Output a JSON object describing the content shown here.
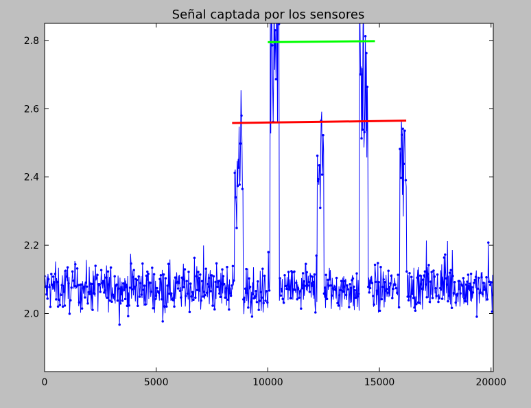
{
  "chart_data": {
    "type": "line",
    "title": "Señal captada por los sensores",
    "xlabel": "",
    "ylabel": "",
    "xlim": [
      0,
      20100
    ],
    "ylim": [
      1.83,
      2.85
    ],
    "xticks": [
      0,
      5000,
      10000,
      15000,
      20000
    ],
    "yticks": [
      2.0,
      2.2,
      2.4,
      2.6,
      2.8
    ],
    "xtick_labels": [
      "0",
      "5000",
      "10000",
      "15000",
      "20000"
    ],
    "ytick_labels": [
      "2.0",
      "2.2",
      "2.4",
      "2.6",
      "2.8"
    ],
    "grid": false,
    "legend": "none",
    "series": [
      {
        "color": "#0000ff",
        "marker": "dot",
        "baseline": 2.075,
        "noise": 0.045,
        "segments": [
          {
            "x": [
              0,
              8500
            ],
            "level": 2.075
          },
          {
            "x": [
              8500,
              8900
            ],
            "level": 2.45
          },
          {
            "x": [
              8900,
              10100
            ],
            "level": 2.06
          },
          {
            "x": [
              10100,
              10500
            ],
            "level": 2.72
          },
          {
            "x": [
              10500,
              12200
            ],
            "level": 2.07
          },
          {
            "x": [
              12200,
              12500
            ],
            "level": 2.45
          },
          {
            "x": [
              12500,
              14100
            ],
            "level": 2.07
          },
          {
            "x": [
              14100,
              14500
            ],
            "level": 2.65
          },
          {
            "x": [
              14500,
              15900
            ],
            "level": 2.07
          },
          {
            "x": [
              15900,
              16200
            ],
            "level": 2.45
          },
          {
            "x": [
              16200,
              20100
            ],
            "level": 2.075
          }
        ]
      },
      {
        "color": "#ff0000",
        "x": [
          8400,
          16200
        ],
        "y": [
          2.558,
          2.565
        ]
      },
      {
        "color": "#00ff00",
        "x": [
          10000,
          14800
        ],
        "y": [
          2.795,
          2.798
        ]
      }
    ]
  }
}
